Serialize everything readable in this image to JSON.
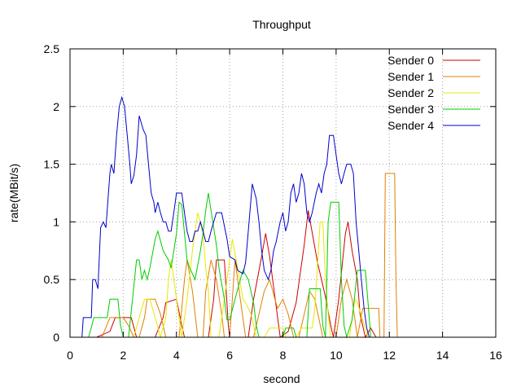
{
  "chart_data": {
    "type": "line",
    "title": "Throughput",
    "xlabel": "second",
    "ylabel": "rate(MBit/s)",
    "xlim": [
      0,
      16
    ],
    "ylim": [
      0,
      2.5
    ],
    "xticks": [
      0,
      2,
      4,
      6,
      8,
      10,
      12,
      14,
      16
    ],
    "yticks": [
      0,
      0.5,
      1,
      1.5,
      2,
      2.5
    ],
    "xtick_labels": [
      "0",
      "2",
      "4",
      "6",
      "8",
      "10",
      "12",
      "14",
      "16"
    ],
    "ytick_labels": [
      "0",
      "0.5",
      "1",
      "1.5",
      "2",
      "2.5"
    ],
    "grid": true,
    "legend_position": "top-right",
    "series": [
      {
        "name": "Sender 0",
        "color": "#cc0000",
        "points": [
          [
            1.0,
            0
          ],
          [
            1.5,
            0.05
          ],
          [
            1.7,
            0.17
          ],
          [
            2.3,
            0.17
          ],
          [
            2.5,
            0
          ],
          [
            3.2,
            0
          ],
          [
            3.5,
            0.17
          ],
          [
            3.6,
            0.3
          ],
          [
            4.0,
            0.33
          ],
          [
            4.2,
            0.1
          ],
          [
            4.3,
            0
          ],
          [
            5.2,
            0
          ],
          [
            5.4,
            0.33
          ],
          [
            5.5,
            0.67
          ],
          [
            5.8,
            0.67
          ],
          [
            5.95,
            0.1
          ],
          [
            6.0,
            0
          ],
          [
            6.7,
            0
          ],
          [
            6.9,
            0.33
          ],
          [
            7.2,
            0.7
          ],
          [
            7.35,
            0.9
          ],
          [
            7.5,
            0.7
          ],
          [
            7.7,
            0.35
          ],
          [
            7.9,
            0
          ],
          [
            8.2,
            0.05
          ],
          [
            8.5,
            0.3
          ],
          [
            8.8,
            0.8
          ],
          [
            8.95,
            1.1
          ],
          [
            9.3,
            0.65
          ],
          [
            9.6,
            0.35
          ],
          [
            9.8,
            0.1
          ],
          [
            9.9,
            0
          ],
          [
            10.1,
            0.33
          ],
          [
            10.35,
            0.9
          ],
          [
            10.45,
            1.0
          ],
          [
            10.6,
            0.75
          ],
          [
            10.8,
            0.5
          ],
          [
            10.9,
            0.2
          ],
          [
            11.1,
            0
          ],
          [
            11.3,
            0.08
          ],
          [
            11.5,
            0
          ]
        ]
      },
      {
        "name": "Sender 1",
        "color": "#e08000",
        "points": [
          [
            1.2,
            0
          ],
          [
            1.5,
            0.17
          ],
          [
            2.0,
            0.17
          ],
          [
            2.2,
            0.1
          ],
          [
            2.4,
            0
          ],
          [
            2.6,
            0
          ],
          [
            2.8,
            0.17
          ],
          [
            2.9,
            0.33
          ],
          [
            3.2,
            0.33
          ],
          [
            3.4,
            0.2
          ],
          [
            3.6,
            0
          ],
          [
            4.1,
            0
          ],
          [
            4.3,
            0.5
          ],
          [
            4.4,
            0.67
          ],
          [
            4.6,
            0.4
          ],
          [
            4.8,
            0
          ],
          [
            5.0,
            0
          ],
          [
            5.1,
            0.4
          ],
          [
            5.3,
            0.67
          ],
          [
            5.5,
            0.5
          ],
          [
            5.7,
            0.2
          ],
          [
            5.8,
            0
          ],
          [
            6.0,
            0
          ],
          [
            6.1,
            0.33
          ],
          [
            6.2,
            0.67
          ],
          [
            6.4,
            0.33
          ],
          [
            6.6,
            0
          ],
          [
            6.9,
            0
          ],
          [
            7.1,
            0.2
          ],
          [
            7.3,
            0.4
          ],
          [
            7.5,
            0.5
          ],
          [
            7.7,
            0.33
          ],
          [
            7.8,
            0.25
          ],
          [
            8.0,
            0.33
          ],
          [
            8.2,
            0.2
          ],
          [
            8.4,
            0
          ],
          [
            8.6,
            0
          ],
          [
            8.8,
            0.2
          ],
          [
            9.0,
            0.4
          ],
          [
            9.2,
            0.33
          ],
          [
            9.5,
            0
          ],
          [
            10.0,
            0
          ],
          [
            10.2,
            0.33
          ],
          [
            10.4,
            0.5
          ],
          [
            10.6,
            0.33
          ],
          [
            10.8,
            0
          ],
          [
            11.0,
            0.25
          ],
          [
            11.6,
            0.25
          ],
          [
            11.65,
            0
          ],
          [
            11.8,
            0
          ],
          [
            11.85,
            1.42
          ],
          [
            12.2,
            1.42
          ],
          [
            12.25,
            0.5
          ],
          [
            12.3,
            0
          ]
        ]
      },
      {
        "name": "Sender 2",
        "color": "#e8e800",
        "points": [
          [
            2.4,
            0
          ],
          [
            2.6,
            0.17
          ],
          [
            2.8,
            0.33
          ],
          [
            3.0,
            0.33
          ],
          [
            3.2,
            0.17
          ],
          [
            3.4,
            0
          ],
          [
            3.6,
            0.17
          ],
          [
            3.7,
            0.5
          ],
          [
            3.8,
            0.67
          ],
          [
            4.0,
            0.33
          ],
          [
            4.2,
            0
          ],
          [
            4.4,
            0.33
          ],
          [
            4.6,
            0.75
          ],
          [
            4.8,
            1.08
          ],
          [
            5.0,
            0.9
          ],
          [
            5.1,
            0.6
          ],
          [
            5.2,
            0.4
          ],
          [
            5.3,
            0
          ],
          [
            5.6,
            0
          ],
          [
            5.8,
            0.33
          ],
          [
            6.0,
            0.67
          ],
          [
            6.1,
            0.85
          ],
          [
            6.3,
            0.6
          ],
          [
            6.5,
            0.33
          ],
          [
            6.6,
            0.3
          ],
          [
            6.8,
            0.2
          ],
          [
            7.0,
            0
          ],
          [
            7.3,
            0
          ],
          [
            7.5,
            0.08
          ],
          [
            7.8,
            0.08
          ],
          [
            8.0,
            0.08
          ],
          [
            8.1,
            0
          ],
          [
            8.5,
            0
          ],
          [
            8.7,
            0.08
          ],
          [
            9.1,
            0.08
          ],
          [
            9.2,
            0.25
          ],
          [
            9.4,
            1.0
          ],
          [
            9.5,
            1.0
          ],
          [
            9.6,
            0.5
          ],
          [
            9.7,
            0.2
          ],
          [
            9.8,
            0
          ],
          [
            10.5,
            0
          ],
          [
            10.7,
            0.33
          ],
          [
            10.8,
            0.3
          ],
          [
            11.0,
            0.15
          ],
          [
            11.2,
            0
          ]
        ]
      },
      {
        "name": "Sender 3",
        "color": "#00cc00",
        "points": [
          [
            0.7,
            0
          ],
          [
            0.9,
            0.17
          ],
          [
            1.4,
            0.17
          ],
          [
            1.5,
            0.33
          ],
          [
            1.8,
            0.33
          ],
          [
            1.9,
            0.1
          ],
          [
            2.0,
            0
          ],
          [
            2.2,
            0
          ],
          [
            2.35,
            0.33
          ],
          [
            2.5,
            0.67
          ],
          [
            2.6,
            0.67
          ],
          [
            2.7,
            0.5
          ],
          [
            2.8,
            0.58
          ],
          [
            2.9,
            0.5
          ],
          [
            3.0,
            0.6
          ],
          [
            3.2,
            0.85
          ],
          [
            3.3,
            0.92
          ],
          [
            3.5,
            0.75
          ],
          [
            3.7,
            0.67
          ],
          [
            3.8,
            0.6
          ],
          [
            4.0,
            0.9
          ],
          [
            4.1,
            1.17
          ],
          [
            4.2,
            1.15
          ],
          [
            4.3,
            0.9
          ],
          [
            4.4,
            0.67
          ],
          [
            4.5,
            0.6
          ],
          [
            4.7,
            0.5
          ],
          [
            4.9,
            0.75
          ],
          [
            5.0,
            0.9
          ],
          [
            5.1,
            1.1
          ],
          [
            5.2,
            1.25
          ],
          [
            5.3,
            1.1
          ],
          [
            5.5,
            0.8
          ],
          [
            5.6,
            0.6
          ],
          [
            5.8,
            0.33
          ],
          [
            5.9,
            0.15
          ],
          [
            6.0,
            0.15
          ],
          [
            6.2,
            0.33
          ],
          [
            6.4,
            0.5
          ],
          [
            6.5,
            0.58
          ],
          [
            6.7,
            0.5
          ],
          [
            6.9,
            0.3
          ],
          [
            7.0,
            0.1
          ],
          [
            7.1,
            0
          ],
          [
            8.0,
            0
          ],
          [
            8.1,
            0.08
          ],
          [
            8.4,
            0.08
          ],
          [
            8.5,
            0
          ],
          [
            8.9,
            0
          ],
          [
            9.0,
            0.42
          ],
          [
            9.4,
            0.42
          ],
          [
            9.5,
            0.1
          ],
          [
            9.6,
            0
          ],
          [
            9.7,
            1.0
          ],
          [
            9.8,
            1.17
          ],
          [
            10.1,
            1.17
          ],
          [
            10.2,
            0.5
          ],
          [
            10.3,
            0.1
          ],
          [
            10.4,
            0
          ],
          [
            10.6,
            0.15
          ],
          [
            10.8,
            0.58
          ],
          [
            11.1,
            0.58
          ],
          [
            11.2,
            0.3
          ],
          [
            11.3,
            0
          ]
        ]
      },
      {
        "name": "Sender 4",
        "color": "#0000cc",
        "points": [
          [
            0.45,
            0
          ],
          [
            0.5,
            0.17
          ],
          [
            0.8,
            0.17
          ],
          [
            0.85,
            0.5
          ],
          [
            0.95,
            0.5
          ],
          [
            1.05,
            0.42
          ],
          [
            1.15,
            0.95
          ],
          [
            1.25,
            1.0
          ],
          [
            1.35,
            0.95
          ],
          [
            1.5,
            1.42
          ],
          [
            1.55,
            1.5
          ],
          [
            1.65,
            1.42
          ],
          [
            1.75,
            1.75
          ],
          [
            1.85,
            2.0
          ],
          [
            1.95,
            2.08
          ],
          [
            2.05,
            2.0
          ],
          [
            2.15,
            1.75
          ],
          [
            2.25,
            1.5
          ],
          [
            2.3,
            1.33
          ],
          [
            2.4,
            1.4
          ],
          [
            2.5,
            1.58
          ],
          [
            2.6,
            1.92
          ],
          [
            2.75,
            1.8
          ],
          [
            2.85,
            1.75
          ],
          [
            2.95,
            1.5
          ],
          [
            3.05,
            1.25
          ],
          [
            3.15,
            1.17
          ],
          [
            3.2,
            1.08
          ],
          [
            3.3,
            1.17
          ],
          [
            3.4,
            1.08
          ],
          [
            3.5,
            1.0
          ],
          [
            3.6,
            1.0
          ],
          [
            3.7,
            0.92
          ],
          [
            3.8,
            0.92
          ],
          [
            3.9,
            1.08
          ],
          [
            4.0,
            1.25
          ],
          [
            4.2,
            1.25
          ],
          [
            4.3,
            1.08
          ],
          [
            4.4,
            0.92
          ],
          [
            4.5,
            0.83
          ],
          [
            4.6,
            0.83
          ],
          [
            4.7,
            0.92
          ],
          [
            4.8,
            0.92
          ],
          [
            4.9,
            1.0
          ],
          [
            5.0,
            0.92
          ],
          [
            5.1,
            0.83
          ],
          [
            5.2,
            0.83
          ],
          [
            5.3,
            0.92
          ],
          [
            5.5,
            1.08
          ],
          [
            5.7,
            1.08
          ],
          [
            5.9,
            0.85
          ],
          [
            6.0,
            0.7
          ],
          [
            6.2,
            0.67
          ],
          [
            6.3,
            0.58
          ],
          [
            6.5,
            0.55
          ],
          [
            6.6,
            0.65
          ],
          [
            6.7,
            0.92
          ],
          [
            6.85,
            1.33
          ],
          [
            7.0,
            1.2
          ],
          [
            7.1,
            1.0
          ],
          [
            7.2,
            0.75
          ],
          [
            7.3,
            0.58
          ],
          [
            7.45,
            0.5
          ],
          [
            7.55,
            0.58
          ],
          [
            7.65,
            0.75
          ],
          [
            7.75,
            0.83
          ],
          [
            7.9,
            1.0
          ],
          [
            8.0,
            1.08
          ],
          [
            8.1,
            0.92
          ],
          [
            8.2,
            1.0
          ],
          [
            8.3,
            1.25
          ],
          [
            8.4,
            1.33
          ],
          [
            8.5,
            1.17
          ],
          [
            8.6,
            1.25
          ],
          [
            8.7,
            1.42
          ],
          [
            8.8,
            1.33
          ],
          [
            8.9,
            1.08
          ],
          [
            9.0,
            1.0
          ],
          [
            9.1,
            1.08
          ],
          [
            9.25,
            1.25
          ],
          [
            9.35,
            1.33
          ],
          [
            9.45,
            1.25
          ],
          [
            9.55,
            1.42
          ],
          [
            9.65,
            1.5
          ],
          [
            9.75,
            1.75
          ],
          [
            9.9,
            1.75
          ],
          [
            10.0,
            1.58
          ],
          [
            10.1,
            1.42
          ],
          [
            10.2,
            1.33
          ],
          [
            10.3,
            1.42
          ],
          [
            10.4,
            1.5
          ],
          [
            10.55,
            1.5
          ],
          [
            10.65,
            1.42
          ],
          [
            10.75,
            1.0
          ],
          [
            10.85,
            0.75
          ],
          [
            10.95,
            0.5
          ],
          [
            11.05,
            0.25
          ],
          [
            11.15,
            0.08
          ],
          [
            11.25,
            0
          ]
        ]
      }
    ]
  }
}
